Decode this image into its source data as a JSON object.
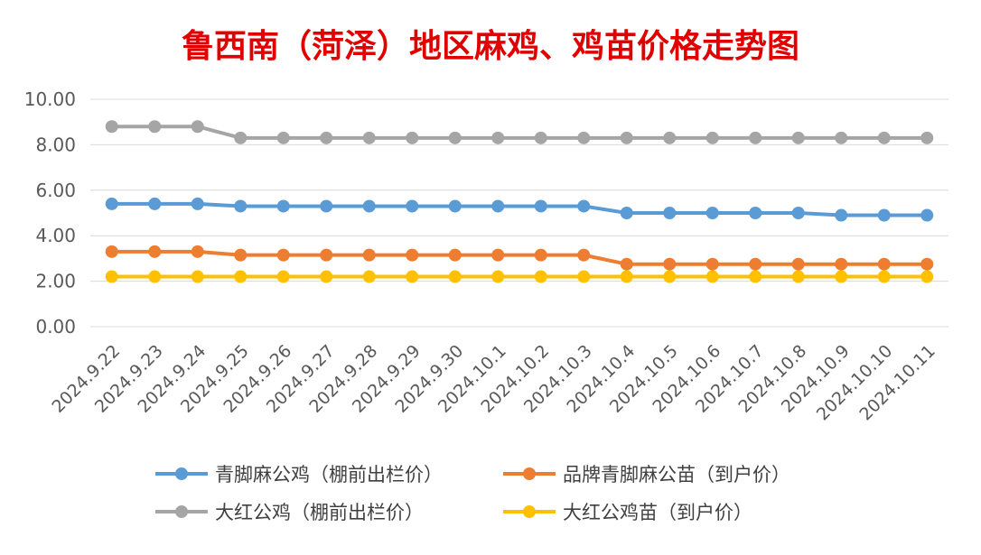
{
  "chart_data": {
    "type": "line",
    "title": "鲁西南（菏泽）地区麻鸡、鸡苗价格走势图",
    "categories": [
      "2024.9.22",
      "2024.9.23",
      "2024.9.24",
      "2024.9.25",
      "2024.9.26",
      "2024.9.27",
      "2024.9.28",
      "2024.9.29",
      "2024.9.30",
      "2024.10.1",
      "2024.10.2",
      "2024.10.3",
      "2024.10.4",
      "2024.10.5",
      "2024.10.6",
      "2024.10.7",
      "2024.10.8",
      "2024.10.9",
      "2024.10.10",
      "2024.10.11"
    ],
    "ylim": [
      0,
      10
    ],
    "yticks": [
      "0.00",
      "2.00",
      "4.00",
      "6.00",
      "8.00",
      "10.00"
    ],
    "grid": true,
    "legend_position": "bottom",
    "series": [
      {
        "name": "青脚麻公鸡（棚前出栏价）",
        "color": "#5b9bd5",
        "values": [
          5.4,
          5.4,
          5.4,
          5.3,
          5.3,
          5.3,
          5.3,
          5.3,
          5.3,
          5.3,
          5.3,
          5.3,
          5.0,
          5.0,
          5.0,
          5.0,
          5.0,
          4.9,
          4.9,
          4.9
        ]
      },
      {
        "name": "品牌青脚麻公苗（到户价）",
        "color": "#ed7d31",
        "values": [
          3.3,
          3.3,
          3.3,
          3.15,
          3.15,
          3.15,
          3.15,
          3.15,
          3.15,
          3.15,
          3.15,
          3.15,
          2.75,
          2.75,
          2.75,
          2.75,
          2.75,
          2.75,
          2.75,
          2.75
        ]
      },
      {
        "name": "大红公鸡（棚前出栏价）",
        "color": "#a5a5a5",
        "values": [
          8.8,
          8.8,
          8.8,
          8.3,
          8.3,
          8.3,
          8.3,
          8.3,
          8.3,
          8.3,
          8.3,
          8.3,
          8.3,
          8.3,
          8.3,
          8.3,
          8.3,
          8.3,
          8.3,
          8.3
        ]
      },
      {
        "name": "大红公鸡苗（到户价）",
        "color": "#ffc000",
        "values": [
          2.2,
          2.2,
          2.2,
          2.2,
          2.2,
          2.2,
          2.2,
          2.2,
          2.2,
          2.2,
          2.2,
          2.2,
          2.2,
          2.2,
          2.2,
          2.2,
          2.2,
          2.2,
          2.2,
          2.2
        ]
      }
    ]
  }
}
